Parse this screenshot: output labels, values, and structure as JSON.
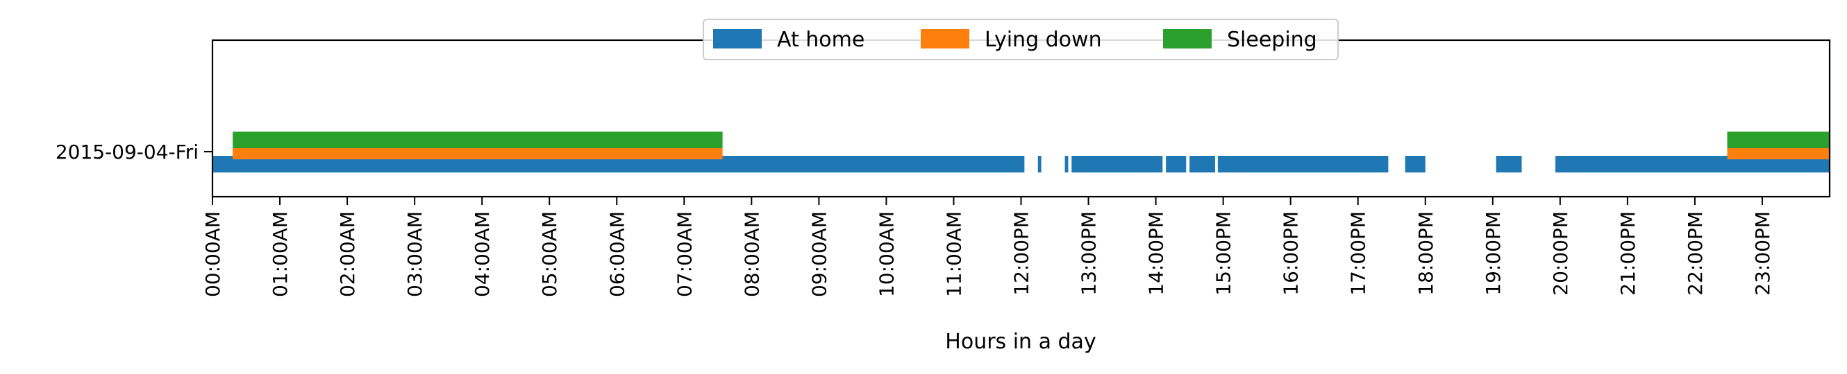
{
  "chart_data": {
    "type": "broken_barh",
    "title": "",
    "xlabel": "Hours in a day",
    "ylabel": "",
    "xlim": [
      0,
      24
    ],
    "ytick_labels": [
      "2015-09-04-Fri"
    ],
    "xtick_labels": [
      "00:00AM",
      "01:00AM",
      "02:00AM",
      "03:00AM",
      "04:00AM",
      "05:00AM",
      "06:00AM",
      "07:00AM",
      "08:00AM",
      "09:00AM",
      "10:00AM",
      "11:00AM",
      "12:00PM",
      "13:00PM",
      "14:00PM",
      "15:00PM",
      "16:00PM",
      "17:00PM",
      "18:00PM",
      "19:00PM",
      "20:00PM",
      "21:00PM",
      "22:00PM",
      "23:00PM"
    ],
    "xtick_values": [
      0,
      1,
      2,
      3,
      4,
      5,
      6,
      7,
      8,
      9,
      10,
      11,
      12,
      13,
      14,
      15,
      16,
      17,
      18,
      19,
      20,
      21,
      22,
      23
    ],
    "legend": {
      "placement": "top-center"
    },
    "grid": false,
    "series": [
      {
        "name": "At home",
        "color": "#1f77b4",
        "row": "bottom",
        "intervals": [
          [
            0.0,
            12.05
          ],
          [
            12.25,
            12.3
          ],
          [
            12.65,
            12.7
          ],
          [
            12.75,
            14.1
          ],
          [
            14.15,
            14.45
          ],
          [
            14.5,
            14.88
          ],
          [
            14.92,
            17.45
          ],
          [
            17.7,
            18.0
          ],
          [
            19.05,
            19.43
          ],
          [
            19.93,
            24.0
          ]
        ]
      },
      {
        "name": "Lying down",
        "color": "#ff7f0e",
        "row": "middle",
        "intervals": [
          [
            0.3,
            7.57
          ],
          [
            22.48,
            24.0
          ]
        ]
      },
      {
        "name": "Sleeping",
        "color": "#2ca02c",
        "row": "top",
        "intervals": [
          [
            0.3,
            7.57
          ],
          [
            22.48,
            24.0
          ]
        ]
      }
    ]
  }
}
